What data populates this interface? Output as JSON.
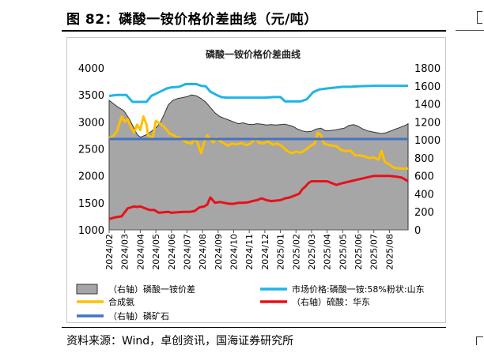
{
  "figure_title": "图 82：磷酸一铵价格价差曲线（元/吨）",
  "source_text": "资料来源：Wind，卓创资讯，国海证券研究所",
  "chart_data": {
    "type": "line",
    "title": "磷酸一铵价格价差曲线",
    "left_axis": {
      "min": 1000,
      "max": 4000,
      "ticks": [
        "1000",
        "1500",
        "2000",
        "2500",
        "3000",
        "3500",
        "4000"
      ]
    },
    "right_axis": {
      "min": 0,
      "max": 1800,
      "ticks": [
        "0",
        "200",
        "400",
        "600",
        "800",
        "1000",
        "1200",
        "1400",
        "1600",
        "1800"
      ]
    },
    "x_labels": [
      "2024/02",
      "2024/03",
      "2024/04",
      "2024/05",
      "2024/06",
      "2024/07",
      "2024/08",
      "2024/09",
      "2024/10",
      "2024/11",
      "2024/12",
      "2025/01",
      "2025/02",
      "2025/03",
      "2025/04",
      "2025/05",
      "2025/06",
      "2025/07",
      "2025/08"
    ],
    "x_range": [
      0,
      19.2
    ],
    "legend": [
      {
        "label": "（右轴）磷酸一铵价差",
        "type": "area",
        "color": "#a6a6a6"
      },
      {
        "label": "市场价格:磷酸一铵:58%粉状:山东",
        "type": "line",
        "color": "#1fb4e8"
      },
      {
        "label": "合成氨",
        "type": "line",
        "color": "#ffbf00"
      },
      {
        "label": "（右轴）硫酸：华东",
        "type": "line",
        "color": "#e8101a"
      },
      {
        "label": "（右轴）磷矿石",
        "type": "line",
        "color": "#4472c4"
      }
    ],
    "series": [
      {
        "name": "（右轴）磷酸一铵价差",
        "axis": "right",
        "type": "area",
        "color": "#a6a6a6",
        "points": [
          [
            0,
            1440
          ],
          [
            0.3,
            1400
          ],
          [
            0.6,
            1360
          ],
          [
            0.9,
            1330
          ],
          [
            1.0,
            1310
          ],
          [
            1.3,
            1230
          ],
          [
            1.6,
            1130
          ],
          [
            1.8,
            1060
          ],
          [
            2.0,
            1030
          ],
          [
            2.3,
            1050
          ],
          [
            2.6,
            1080
          ],
          [
            2.9,
            1120
          ],
          [
            3.1,
            1150
          ],
          [
            3.3,
            1200
          ],
          [
            3.5,
            1270
          ],
          [
            3.8,
            1390
          ],
          [
            4.1,
            1440
          ],
          [
            4.4,
            1460
          ],
          [
            4.7,
            1470
          ],
          [
            5.0,
            1480
          ],
          [
            5.3,
            1500
          ],
          [
            5.6,
            1490
          ],
          [
            5.9,
            1460
          ],
          [
            6.2,
            1420
          ],
          [
            6.5,
            1360
          ],
          [
            6.8,
            1300
          ],
          [
            7.1,
            1260
          ],
          [
            7.4,
            1240
          ],
          [
            7.7,
            1220
          ],
          [
            8.0,
            1200
          ],
          [
            8.3,
            1180
          ],
          [
            8.6,
            1190
          ],
          [
            8.9,
            1175
          ],
          [
            9.2,
            1170
          ],
          [
            9.5,
            1180
          ],
          [
            9.8,
            1175
          ],
          [
            10.1,
            1165
          ],
          [
            10.4,
            1170
          ],
          [
            10.7,
            1165
          ],
          [
            11.0,
            1170
          ],
          [
            11.3,
            1175
          ],
          [
            11.6,
            1160
          ],
          [
            11.8,
            1150
          ],
          [
            12.1,
            1120
          ],
          [
            12.4,
            1100
          ],
          [
            12.7,
            1090
          ],
          [
            13.0,
            1095
          ],
          [
            13.3,
            1120
          ],
          [
            13.6,
            1130
          ],
          [
            13.9,
            1100
          ],
          [
            14.2,
            1105
          ],
          [
            14.5,
            1110
          ],
          [
            14.8,
            1120
          ],
          [
            15.1,
            1130
          ],
          [
            15.4,
            1160
          ],
          [
            15.7,
            1170
          ],
          [
            16.0,
            1150
          ],
          [
            16.3,
            1120
          ],
          [
            16.6,
            1100
          ],
          [
            16.9,
            1090
          ],
          [
            17.2,
            1080
          ],
          [
            17.5,
            1070
          ],
          [
            17.8,
            1080
          ],
          [
            18.1,
            1100
          ],
          [
            18.4,
            1120
          ],
          [
            18.7,
            1140
          ],
          [
            19.0,
            1160
          ],
          [
            19.2,
            1180
          ]
        ]
      },
      {
        "name": "市场价格:磷酸一铵:58%粉状:山东",
        "axis": "left",
        "type": "line",
        "color": "#1fb4e8",
        "points": [
          [
            0,
            3480
          ],
          [
            0.5,
            3500
          ],
          [
            1.1,
            3500
          ],
          [
            1.5,
            3370
          ],
          [
            2.0,
            3370
          ],
          [
            2.4,
            3370
          ],
          [
            2.7,
            3480
          ],
          [
            3.2,
            3550
          ],
          [
            3.7,
            3620
          ],
          [
            4.0,
            3640
          ],
          [
            4.5,
            3650
          ],
          [
            4.9,
            3700
          ],
          [
            5.3,
            3700
          ],
          [
            5.6,
            3700
          ],
          [
            5.9,
            3670
          ],
          [
            6.2,
            3660
          ],
          [
            6.5,
            3560
          ],
          [
            6.9,
            3500
          ],
          [
            7.2,
            3460
          ],
          [
            7.5,
            3450
          ],
          [
            8.0,
            3450
          ],
          [
            9.0,
            3450
          ],
          [
            10.0,
            3450
          ],
          [
            10.6,
            3460
          ],
          [
            11.0,
            3460
          ],
          [
            11.3,
            3380
          ],
          [
            11.6,
            3380
          ],
          [
            12.3,
            3380
          ],
          [
            12.7,
            3420
          ],
          [
            13.1,
            3550
          ],
          [
            13.5,
            3600
          ],
          [
            14.0,
            3620
          ],
          [
            15.0,
            3650
          ],
          [
            15.5,
            3650
          ],
          [
            16.0,
            3660
          ],
          [
            17.0,
            3670
          ],
          [
            18.0,
            3670
          ],
          [
            19.2,
            3670
          ]
        ]
      },
      {
        "name": "合成氨",
        "axis": "left",
        "type": "line",
        "color": "#ffbf00",
        "points": [
          [
            0,
            2700
          ],
          [
            0.3,
            2750
          ],
          [
            0.5,
            2820
          ],
          [
            0.8,
            3100
          ],
          [
            1.0,
            3000
          ],
          [
            1.2,
            3050
          ],
          [
            1.4,
            2900
          ],
          [
            1.6,
            2800
          ],
          [
            1.8,
            2950
          ],
          [
            2.0,
            2850
          ],
          [
            2.2,
            3100
          ],
          [
            2.4,
            2950
          ],
          [
            2.5,
            2750
          ],
          [
            2.8,
            2700
          ],
          [
            3.0,
            3020
          ],
          [
            3.2,
            2980
          ],
          [
            3.5,
            2920
          ],
          [
            3.7,
            2850
          ],
          [
            3.9,
            2780
          ],
          [
            4.1,
            2760
          ],
          [
            4.3,
            2720
          ],
          [
            4.6,
            2700
          ],
          [
            4.8,
            2650
          ],
          [
            5.0,
            2620
          ],
          [
            5.3,
            2600
          ],
          [
            5.5,
            2700
          ],
          [
            5.7,
            2600
          ],
          [
            5.9,
            2420
          ],
          [
            6.1,
            2620
          ],
          [
            6.3,
            2750
          ],
          [
            6.5,
            2680
          ],
          [
            6.7,
            2620
          ],
          [
            6.9,
            2700
          ],
          [
            7.1,
            2650
          ],
          [
            7.4,
            2600
          ],
          [
            7.6,
            2560
          ],
          [
            7.9,
            2600
          ],
          [
            8.2,
            2580
          ],
          [
            8.5,
            2610
          ],
          [
            8.8,
            2570
          ],
          [
            9.1,
            2600
          ],
          [
            9.4,
            2700
          ],
          [
            9.6,
            2620
          ],
          [
            9.9,
            2600
          ],
          [
            10.2,
            2640
          ],
          [
            10.5,
            2580
          ],
          [
            10.8,
            2600
          ],
          [
            11.1,
            2550
          ],
          [
            11.4,
            2470
          ],
          [
            11.7,
            2420
          ],
          [
            12.0,
            2450
          ],
          [
            12.3,
            2430
          ],
          [
            12.6,
            2480
          ],
          [
            12.9,
            2550
          ],
          [
            13.2,
            2600
          ],
          [
            13.4,
            2800
          ],
          [
            13.6,
            2750
          ],
          [
            13.8,
            2600
          ],
          [
            14.0,
            2580
          ],
          [
            14.3,
            2560
          ],
          [
            14.6,
            2550
          ],
          [
            14.9,
            2480
          ],
          [
            15.2,
            2460
          ],
          [
            15.5,
            2470
          ],
          [
            15.8,
            2380
          ],
          [
            16.1,
            2380
          ],
          [
            16.4,
            2360
          ],
          [
            16.7,
            2330
          ],
          [
            17.0,
            2340
          ],
          [
            17.3,
            2300
          ],
          [
            17.5,
            2460
          ],
          [
            17.7,
            2260
          ],
          [
            18.0,
            2210
          ],
          [
            18.3,
            2150
          ],
          [
            18.6,
            2140
          ],
          [
            18.9,
            2130
          ],
          [
            19.2,
            2140
          ]
        ]
      },
      {
        "name": "（右轴）硫酸：华东",
        "axis": "right",
        "type": "line",
        "color": "#e8101a",
        "points": [
          [
            0,
            120
          ],
          [
            0.4,
            140
          ],
          [
            0.8,
            150
          ],
          [
            1.2,
            240
          ],
          [
            1.6,
            260
          ],
          [
            1.8,
            255
          ],
          [
            2.0,
            260
          ],
          [
            2.3,
            240
          ],
          [
            2.6,
            220
          ],
          [
            2.9,
            220
          ],
          [
            3.2,
            190
          ],
          [
            3.5,
            195
          ],
          [
            3.8,
            200
          ],
          [
            4.0,
            190
          ],
          [
            4.4,
            195
          ],
          [
            4.8,
            200
          ],
          [
            5.2,
            200
          ],
          [
            5.5,
            210
          ],
          [
            5.8,
            250
          ],
          [
            6.1,
            260
          ],
          [
            6.3,
            280
          ],
          [
            6.5,
            360
          ],
          [
            6.8,
            300
          ],
          [
            7.1,
            310
          ],
          [
            7.4,
            300
          ],
          [
            7.7,
            290
          ],
          [
            8.0,
            290
          ],
          [
            8.3,
            300
          ],
          [
            8.6,
            300
          ],
          [
            8.9,
            305
          ],
          [
            9.2,
            320
          ],
          [
            9.5,
            330
          ],
          [
            9.8,
            350
          ],
          [
            10.1,
            330
          ],
          [
            10.4,
            320
          ],
          [
            10.7,
            325
          ],
          [
            11.0,
            330
          ],
          [
            11.3,
            350
          ],
          [
            11.6,
            360
          ],
          [
            11.9,
            380
          ],
          [
            12.2,
            400
          ],
          [
            12.4,
            450
          ],
          [
            12.6,
            480
          ],
          [
            12.8,
            520
          ],
          [
            13.0,
            540
          ],
          [
            13.5,
            540
          ],
          [
            14.0,
            540
          ],
          [
            14.3,
            520
          ],
          [
            14.6,
            500
          ],
          [
            15.0,
            520
          ],
          [
            15.5,
            540
          ],
          [
            16.0,
            560
          ],
          [
            16.5,
            580
          ],
          [
            17.0,
            600
          ],
          [
            17.5,
            600
          ],
          [
            18.0,
            600
          ],
          [
            18.5,
            590
          ],
          [
            18.8,
            580
          ],
          [
            19.0,
            560
          ],
          [
            19.2,
            540
          ]
        ]
      },
      {
        "name": "（右轴）磷矿石",
        "axis": "right",
        "type": "line",
        "color": "#4472c4",
        "points": [
          [
            0,
            1010
          ],
          [
            5,
            1010
          ],
          [
            10,
            1010
          ],
          [
            15,
            1010
          ],
          [
            19.2,
            1010
          ]
        ]
      }
    ]
  }
}
